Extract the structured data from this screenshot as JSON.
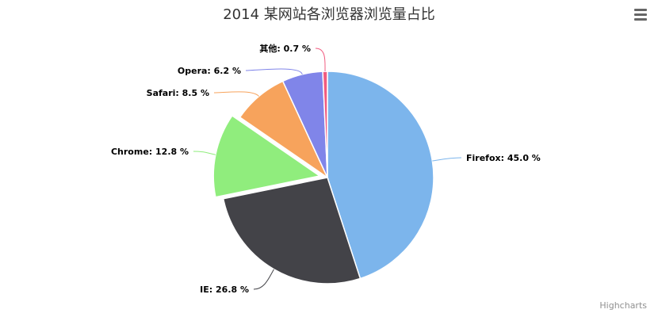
{
  "chart_data": {
    "type": "pie",
    "title": "2014 某网站各浏览器浏览量占比",
    "label_suffix": " %",
    "slices": [
      {
        "name": "Firefox",
        "value": 45.0,
        "label": "45.0",
        "color": "#7cb5ec",
        "sliced": false
      },
      {
        "name": "IE",
        "value": 26.8,
        "label": "26.8",
        "color": "#434348",
        "sliced": false
      },
      {
        "name": "Chrome",
        "value": 12.8,
        "label": "12.8",
        "color": "#90ed7d",
        "sliced": true
      },
      {
        "name": "Safari",
        "value": 8.5,
        "label": "8.5",
        "color": "#f7a35c",
        "sliced": false
      },
      {
        "name": "Opera",
        "value": 6.2,
        "label": "6.2",
        "color": "#8085e9",
        "sliced": false
      },
      {
        "name": "其他",
        "value": 0.7,
        "label": "0.7",
        "color": "#f15c80",
        "sliced": false
      }
    ]
  },
  "credits": "Highcharts",
  "menu_icon": "hamburger-menu-icon"
}
